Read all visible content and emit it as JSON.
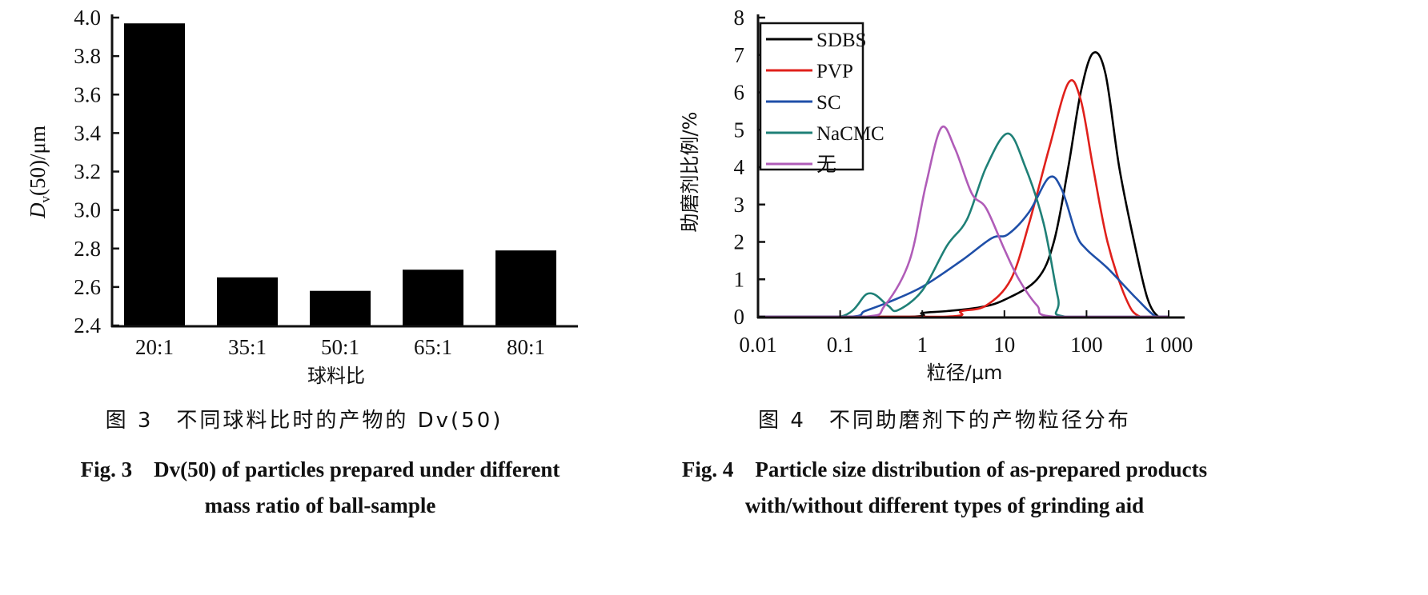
{
  "chart_data": [
    {
      "type": "bar",
      "categories": [
        "20:1",
        "35:1",
        "50:1",
        "65:1",
        "80:1"
      ],
      "values": [
        3.97,
        2.65,
        2.58,
        2.69,
        2.79
      ],
      "xlabel": "球料比",
      "ylabel": "Dv(50)/μm",
      "ylabel_main": "D",
      "ylabel_sub": "v",
      "ylabel_rest": "(50)/μm",
      "ylim": [
        2.4,
        4.0
      ],
      "yticks": [
        "2.4",
        "2.6",
        "2.8",
        "3.0",
        "3.2",
        "3.4",
        "3.6",
        "3.8",
        "4.0"
      ],
      "bar_color": "#000000",
      "grid": false,
      "caption_cn": "图 3　不同球料比时的产物的 Dv(50)",
      "caption_en_line1": "Fig. 3　Dv(50) of particles prepared under different",
      "caption_en_line2": "mass ratio of ball-sample"
    },
    {
      "type": "line",
      "xscale": "log",
      "xlim": [
        0.01,
        1000
      ],
      "ylim": [
        0,
        8
      ],
      "xticks": [
        "0.01",
        "0.1",
        "1",
        "10",
        "100",
        "1 000"
      ],
      "yticks": [
        "0",
        "1",
        "2",
        "3",
        "4",
        "5",
        "6",
        "7",
        "8"
      ],
      "xlabel": "粒径/μm",
      "ylabel": "助磨剂比例/%",
      "legend_position": "top-left",
      "grid": false,
      "series": [
        {
          "name": "SDBS",
          "color": "#000000",
          "x": [
            0.01,
            0.7,
            1,
            2,
            5,
            10,
            25,
            40,
            60,
            85,
            120,
            170,
            250,
            380,
            550,
            750,
            1000
          ],
          "y": [
            0,
            0,
            0.1,
            0.15,
            0.25,
            0.45,
            1.0,
            2.0,
            4.0,
            6.0,
            7.05,
            6.5,
            4.0,
            2.0,
            0.5,
            0,
            0
          ]
        },
        {
          "name": "PVP",
          "color": "#e0201b",
          "x": [
            0.01,
            1.8,
            3,
            6,
            12,
            20,
            35,
            60,
            85,
            120,
            180,
            300,
            450,
            1000
          ],
          "y": [
            0,
            0,
            0.15,
            0.3,
            1.0,
            2.5,
            4.5,
            6.25,
            5.8,
            4.0,
            2.0,
            0.5,
            0,
            0
          ]
        },
        {
          "name": "SC",
          "color": "#1f4fa8",
          "x": [
            0.01,
            0.13,
            0.2,
            0.4,
            1,
            3,
            7,
            11,
            20,
            35,
            50,
            75,
            100,
            180,
            400,
            700,
            1000
          ],
          "y": [
            0,
            0,
            0.15,
            0.4,
            0.8,
            1.5,
            2.1,
            2.2,
            2.8,
            3.72,
            3.4,
            2.2,
            1.8,
            1.3,
            0.5,
            0,
            0
          ]
        },
        {
          "name": "NaCMC",
          "color": "#1f8077",
          "x": [
            0.01,
            0.1,
            0.22,
            0.38,
            0.5,
            1,
            2,
            3.5,
            6,
            11,
            18,
            30,
            45,
            55,
            1000
          ],
          "y": [
            0,
            0,
            0.62,
            0.3,
            0.17,
            0.7,
            1.9,
            2.6,
            4.0,
            4.9,
            4.0,
            2.5,
            0.5,
            0,
            0
          ]
        },
        {
          "name": "无",
          "color": "#b05cb8",
          "x": [
            0.01,
            0.2,
            0.35,
            0.7,
            1.1,
            1.7,
            2.5,
            4,
            6,
            10,
            15,
            25,
            40,
            1000
          ],
          "y": [
            0,
            0,
            0.3,
            1.5,
            3.5,
            5.05,
            4.5,
            3.3,
            2.9,
            1.8,
            1.0,
            0.3,
            0,
            0
          ]
        }
      ],
      "caption_cn": "图 4　不同助磨剂下的产物粒径分布",
      "caption_en_line1": "Fig. 4　Particle size distribution of as-prepared products",
      "caption_en_line2": "with/without different types of grinding aid"
    }
  ]
}
